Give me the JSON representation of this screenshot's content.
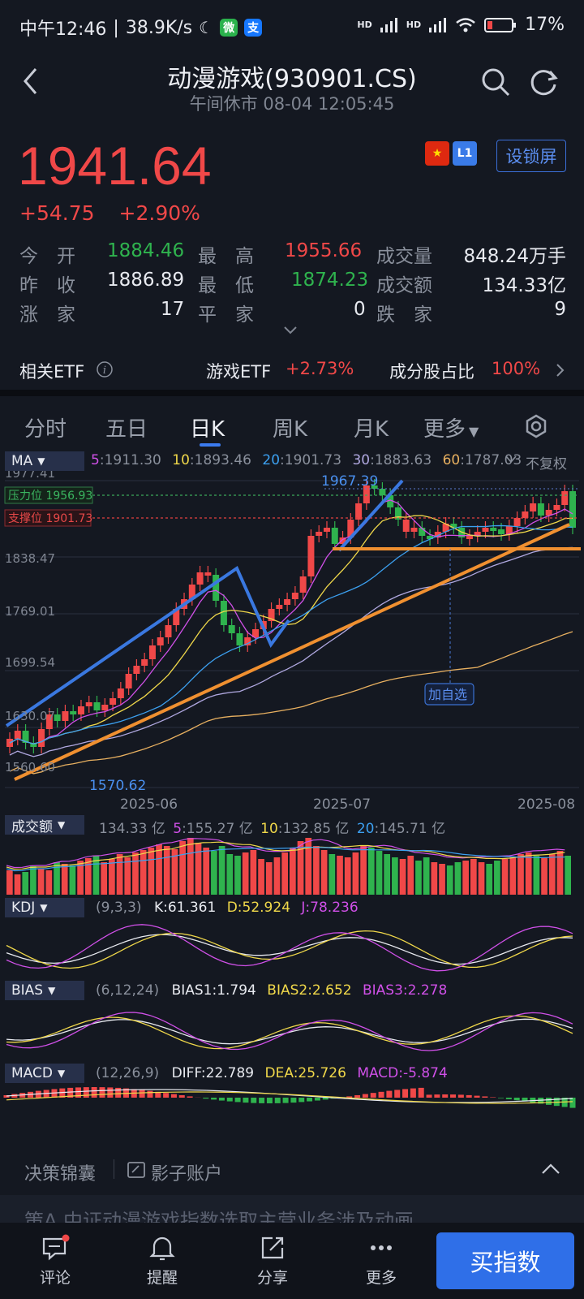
{
  "status": {
    "time": "中午12:46",
    "speed": "38.9K/s",
    "wechat_badge": "微",
    "alipay_badge": "支",
    "net1": "HD",
    "net2": "HD",
    "battery": "17%"
  },
  "header": {
    "title": "动漫游戏(930901.CS)",
    "subtitle": "午间休市 08-04 12:05:45"
  },
  "quote": {
    "price": "1941.64",
    "change": "+54.75",
    "change_pct": "+2.90%",
    "flag_l1": "L1",
    "lock_label": "设锁屏"
  },
  "stats": {
    "open_label": "今　开",
    "open": "1884.46",
    "high_label": "最　高",
    "high": "1955.66",
    "vol_label": "成交量",
    "vol": "848.24万手",
    "prev_label": "昨　收",
    "prev": "1886.89",
    "low_label": "最　低",
    "low": "1874.23",
    "amt_label": "成交额",
    "amt": "134.33亿",
    "up_label": "涨　家",
    "up": "17",
    "flat_label": "平　家",
    "flat": "0",
    "down_label": "跌　家",
    "down": "9"
  },
  "etf": {
    "related_label": "相关ETF",
    "game_etf_label": "游戏ETF",
    "game_etf_value": "+2.73%",
    "constituent_label": "成分股占比",
    "constituent_value": "100%"
  },
  "tabs": [
    "分时",
    "五日",
    "日K",
    "周K",
    "月K",
    "更多"
  ],
  "ma": {
    "label": "MA",
    "ma5_key": "5",
    "ma5": "1911.30",
    "ma10_key": "10",
    "ma10": "1893.46",
    "ma20_key": "20",
    "ma20": "1901.73",
    "ma30_key": "30",
    "ma30": "1883.63",
    "ma60_key": "60",
    "ma60": "1787.03",
    "adjust": "不复权"
  },
  "kline": {
    "y_ticks": [
      "1977.41",
      "1838.47",
      "1769.01",
      "1699.54",
      "1630.07",
      "1560.60"
    ],
    "x_ticks": [
      "2025-06",
      "2025-07",
      "2025-08"
    ],
    "resistance": "压力位 1956.93",
    "support": "支撑位 1901.73",
    "high_mark": "1967.39",
    "low_mark": "1570.62",
    "add_watch": "加自选"
  },
  "volume": {
    "label": "成交额",
    "total": "134.33 亿",
    "ma5_key": "5",
    "ma5": ":155.27 亿",
    "ma10_key": "10",
    "ma10": ":132.85 亿",
    "ma20_key": "20",
    "ma20": ":145.71 亿"
  },
  "kdj": {
    "label": "KDJ",
    "params": "(9,3,3)",
    "k": "K:61.361",
    "d": "D:52.924",
    "j": "J:78.236"
  },
  "bias": {
    "label": "BIAS",
    "params": "(6,12,24)",
    "b1": "BIAS1:1.794",
    "b2": "BIAS2:2.652",
    "b3": "BIAS3:2.278"
  },
  "macd": {
    "label": "MACD",
    "params": "(12,26,9)",
    "diff": "DIFF:22.789",
    "dea": "DEA:25.726",
    "macd": "MACD:-5.874"
  },
  "decision": {
    "label": "决策锦囊",
    "shadow": "影子账户",
    "peek": "策A 中证动漫游戏指数选取主营业务涉及动画"
  },
  "nav": {
    "comment": "评论",
    "alert": "提醒",
    "share": "分享",
    "more": "更多",
    "buy": "买指数"
  },
  "chart_data": {
    "type": "candlestick",
    "title": "",
    "x_ticks": [
      "2025-06",
      "2025-07",
      "2025-08"
    ],
    "ylim": [
      1560.6,
      1977.41
    ],
    "last_close": 1941.64
  }
}
